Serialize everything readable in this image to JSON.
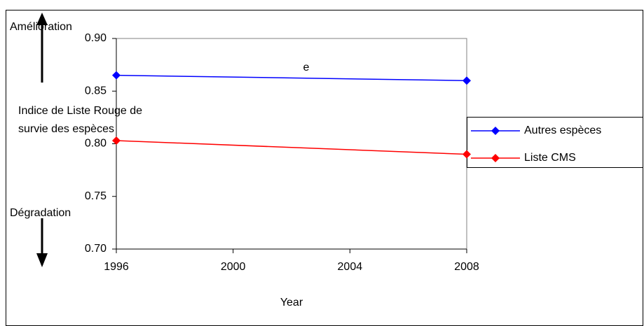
{
  "chart_data": {
    "type": "line",
    "annotations": {
      "top": "Amélioration",
      "bottom": "Dégradation",
      "note": "e"
    },
    "ylabel": [
      "Indice de Liste Rouge de",
      "survie des espèces"
    ],
    "xlabel": "Year",
    "x": [
      1996,
      2008
    ],
    "series": [
      {
        "name": "Autres espèces",
        "color": "#0000ff",
        "values": [
          0.865,
          0.86
        ]
      },
      {
        "name": "Liste CMS",
        "color": "#ff0000",
        "values": [
          0.803,
          0.79
        ]
      }
    ],
    "xlim": [
      1996,
      2008
    ],
    "xticks": [
      1996,
      2000,
      2004,
      2008
    ],
    "ylim": [
      0.7,
      0.9
    ],
    "yticks": [
      {
        "value": 0.7,
        "label": "0.70"
      },
      0.75,
      {
        "value": 0.8,
        "label": "0.80"
      },
      0.85,
      {
        "value": 0.9,
        "label": "0.90"
      }
    ],
    "legend": "right"
  }
}
